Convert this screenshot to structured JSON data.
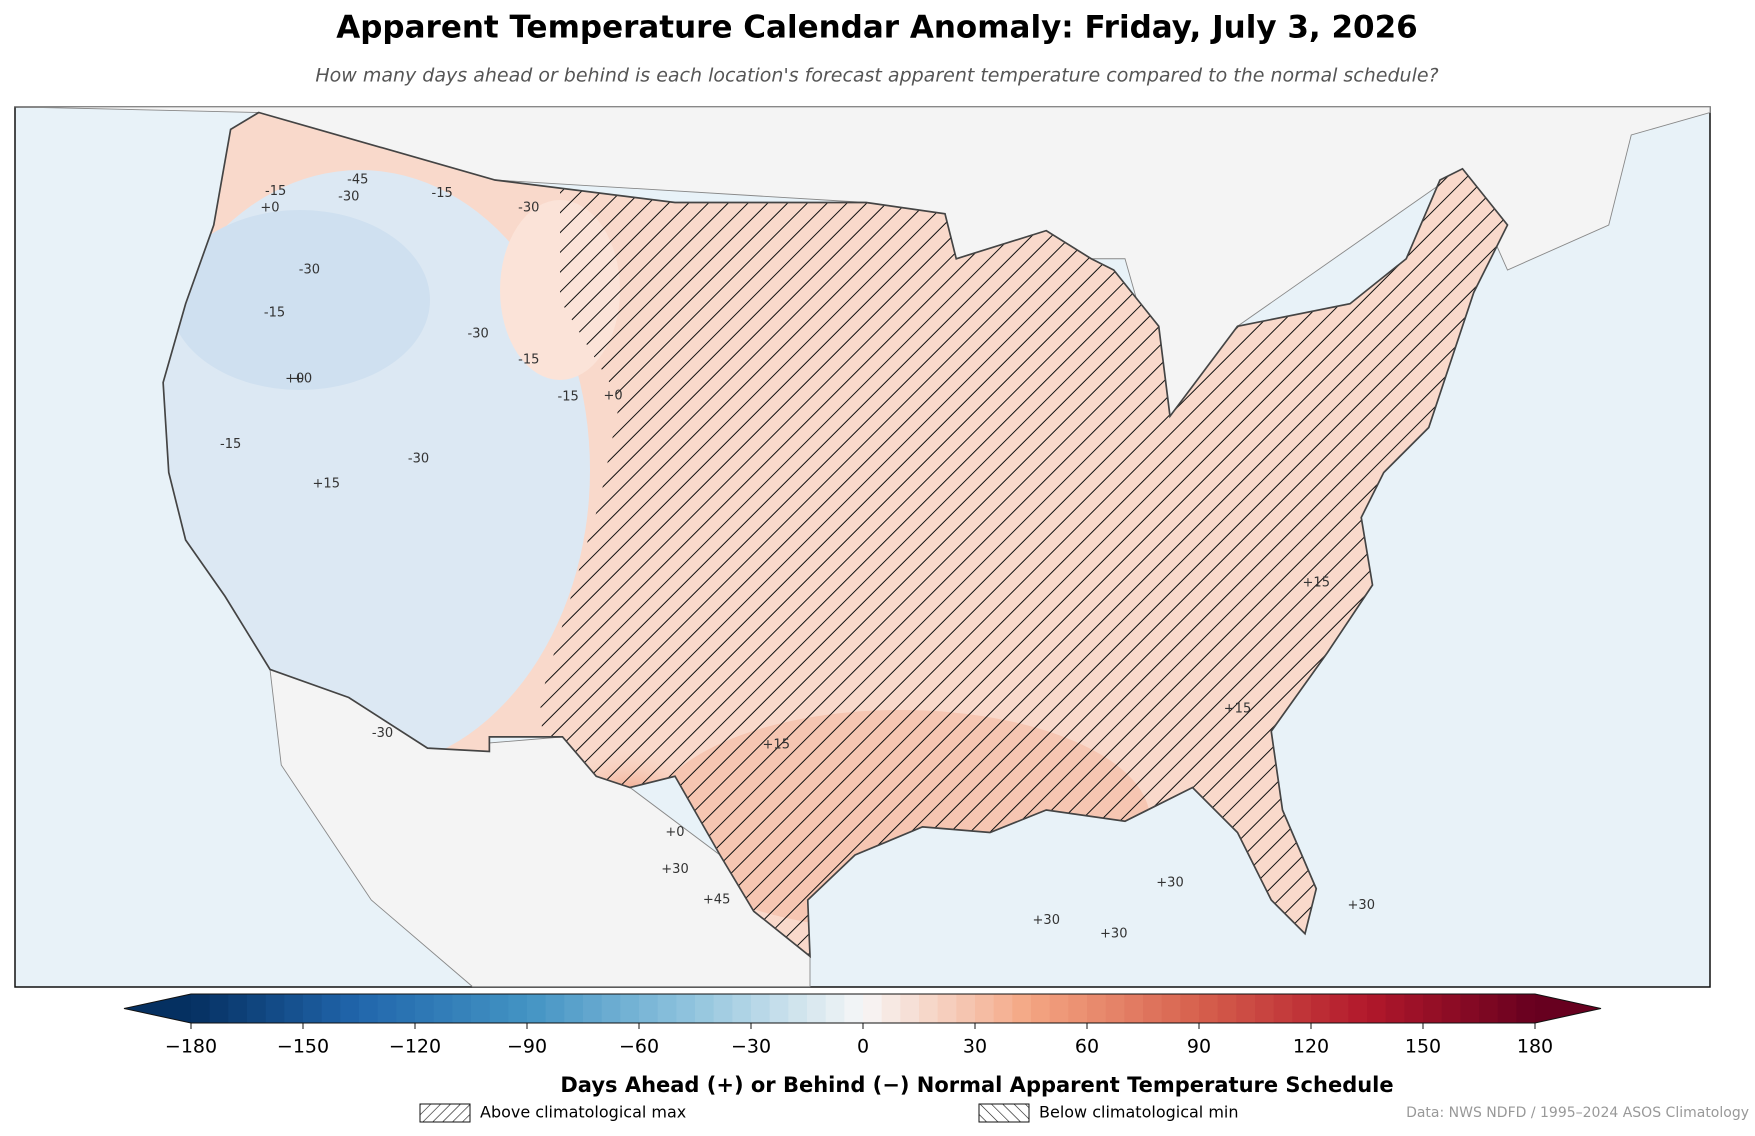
{
  "title": "Apparent Temperature Calendar Anomaly: Friday, July 3, 2026",
  "subtitle": "How many days ahead or behind is each location's forecast apparent temperature compared to the normal schedule?",
  "map": {
    "contour_labels": [
      "-15",
      "+0",
      "-30",
      "-45",
      "-15",
      "-30",
      "-30",
      "-15",
      "-15",
      "+0",
      "-15",
      "+0",
      "-30",
      "-30",
      "-15",
      "+0",
      "+15",
      "+15",
      "+15",
      "+15",
      "+30",
      "+30",
      "+30",
      "+30",
      "+45",
      "-30",
      "+30",
      "+0"
    ]
  },
  "colorbar": {
    "label": "Days Ahead (+) or Behind (−) Normal Apparent Temperature Schedule",
    "lim": [
      -180,
      180
    ],
    "ticks": [
      {
        "value": -180,
        "label": "−180"
      },
      {
        "value": -150,
        "label": "−150"
      },
      {
        "value": -120,
        "label": "−120"
      },
      {
        "value": -90,
        "label": "−90"
      },
      {
        "value": -60,
        "label": "−60"
      },
      {
        "value": -30,
        "label": "−30"
      },
      0,
      30,
      60,
      90,
      120,
      150,
      180
    ]
  },
  "legend": [
    "Above climatological max",
    "Below climatological min"
  ],
  "source": "Data: NWS NDFD / 1995–2024 ASOS Climatology"
}
